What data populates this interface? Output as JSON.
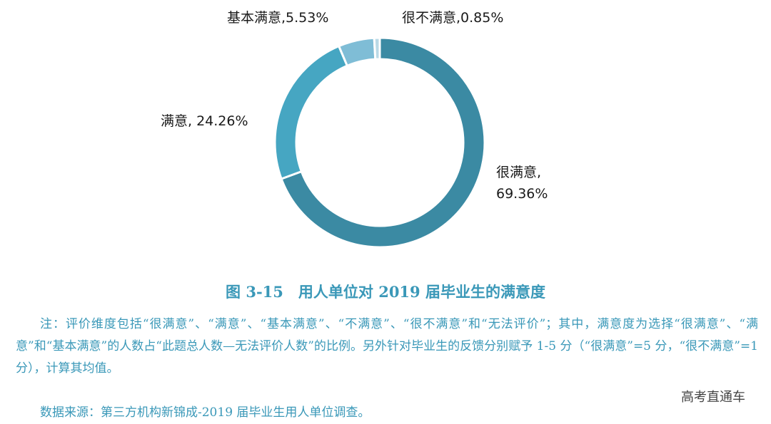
{
  "chart_data": {
    "type": "pie",
    "donut": true,
    "title": "图 3-15　用人单位对 2019 届毕业生的满意度",
    "slices": [
      {
        "name": "很满意",
        "value": 69.36,
        "label": "很满意,",
        "label2": "69.36%",
        "color": "#3b8aa3"
      },
      {
        "name": "满意",
        "value": 24.26,
        "label": "满意, 24.26%",
        "color": "#46a6c2"
      },
      {
        "name": "基本满意",
        "value": 5.53,
        "label": "基本满意,5.53%",
        "color": "#7fbdd6"
      },
      {
        "name": "很不满意",
        "value": 0.85,
        "label": "很不满意,0.85%",
        "color": "#b9d9e6"
      }
    ]
  },
  "note": "注：评价维度包括“很满意”、“满意”、“基本满意”、“不满意”、“很不满意”和“无法评价”；其中，满意度为选择“很满意”、“满意”和“基本满意”的人数占“此题总人数—无法评价人数”的比例。另外针对毕业生的反馈分别赋予 1-5 分（“很满意”=5 分，“很不满意”=1 分），计算其均值。",
  "source": "数据来源：第三方机构新锦成-2019 届毕业生用人单位调查。",
  "watermark": "高考直通车"
}
